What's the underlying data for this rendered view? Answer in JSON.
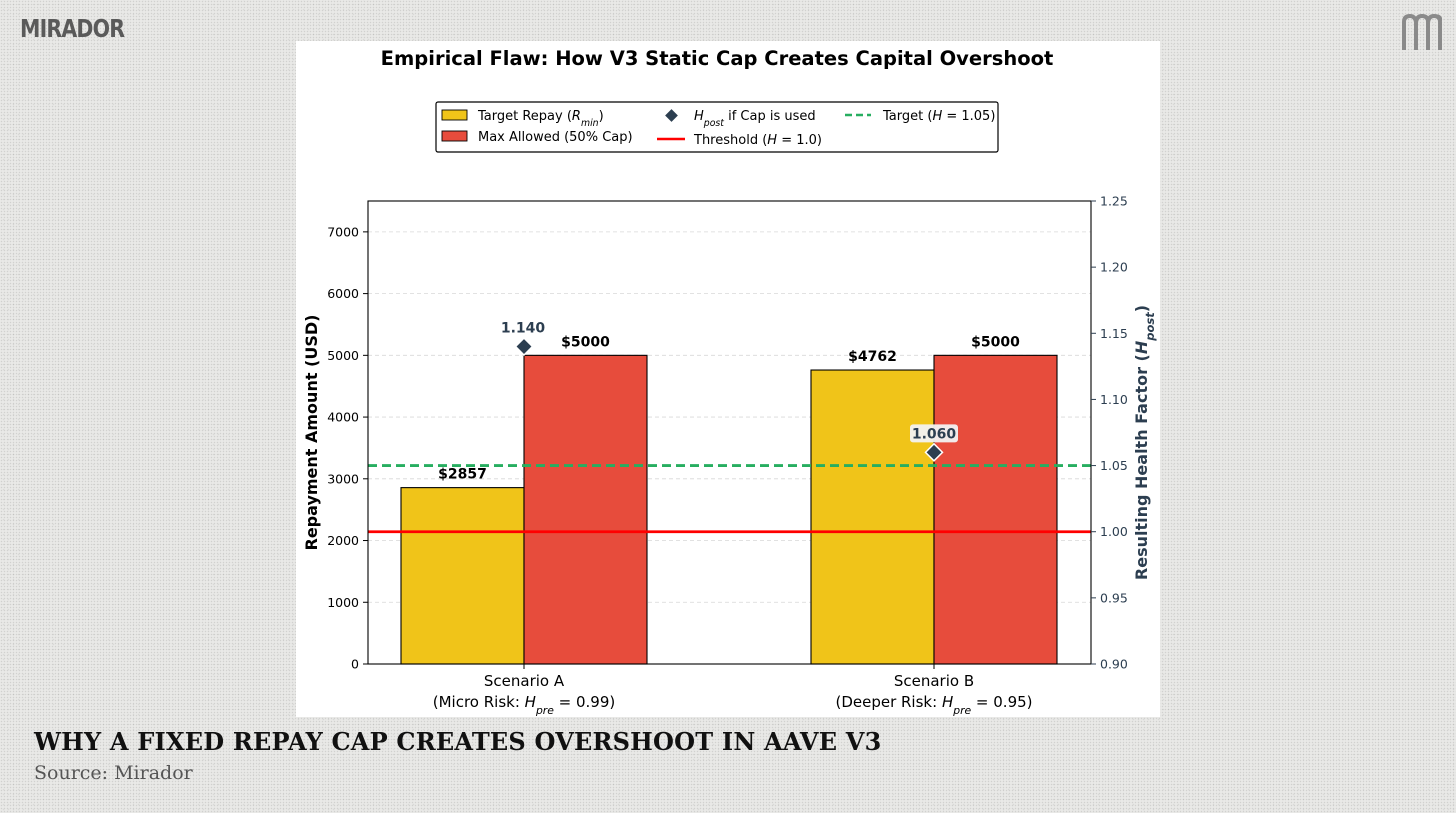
{
  "brand": {
    "wordmark": "MIRADOR",
    "mark_icon": "mirador-m-logo-icon"
  },
  "caption": {
    "title": "WHY A FIXED REPAY CAP CREATES OVERSHOOT IN AAVE V3",
    "source": "Source: Mirador"
  },
  "colors": {
    "target_bar": "#F0C419",
    "cap_bar": "#E74C3C",
    "marker": "#2C3E50",
    "threshold": "#FF0000",
    "target_line": "#27AE60",
    "right_axis": "#2C3E50"
  },
  "chart_data": {
    "type": "bar",
    "title": "Empirical Flaw: How V3 Static Cap Creates Capital Overshoot",
    "categories": [
      {
        "name": "Scenario A",
        "detail_prefix": "(Micro Risk: ",
        "h_label": "H",
        "h_sub": "pre",
        "detail_suffix": " = 0.99)"
      },
      {
        "name": "Scenario B",
        "detail_prefix": "(Deeper Risk: ",
        "h_label": "H",
        "h_sub": "pre",
        "detail_suffix": " = 0.95)"
      }
    ],
    "series": [
      {
        "name": "Target Repay (R_min)",
        "values": [
          2857,
          4762
        ],
        "labels": [
          "$2857",
          "$4762"
        ]
      },
      {
        "name": "Max Allowed (50% Cap)",
        "values": [
          5000,
          5000
        ],
        "labels": [
          "$5000",
          "$5000"
        ]
      }
    ],
    "hpost": {
      "name": "H_post if Cap is used",
      "values": [
        1.14,
        1.06
      ],
      "labels": [
        "1.140",
        "1.060"
      ]
    },
    "reference_lines": [
      {
        "name": "Threshold (H = 1.0)",
        "value": 1.0
      },
      {
        "name": "Target (H = 1.05)",
        "value": 1.05
      }
    ],
    "ylabel": "Repayment Amount (USD)",
    "ylim": [
      0,
      7500
    ],
    "yticks": [
      0,
      1000,
      2000,
      3000,
      4000,
      5000,
      6000,
      7000
    ],
    "y2label": "Resulting Health Factor (H_post)",
    "y2lim": [
      0.9,
      1.25
    ],
    "y2ticks": [
      "0.90",
      "0.95",
      "1.00",
      "1.05",
      "1.10",
      "1.15",
      "1.20",
      "1.25"
    ],
    "grid": "horizontal dashed",
    "legend": {
      "position": "top-center",
      "items": [
        {
          "kind": "patch",
          "series": 0,
          "text": "Target Repay (",
          "math": "R",
          "sub": "min",
          "tail": ")"
        },
        {
          "kind": "patch",
          "series": 1,
          "text": "Max Allowed (50% Cap)"
        },
        {
          "kind": "marker",
          "text": "",
          "math": "H",
          "sub": "post",
          "tail": " if Cap is used"
        },
        {
          "kind": "line-red",
          "text": "Threshold (",
          "math": "H",
          "sub": "",
          "tail": " = 1.0)"
        },
        {
          "kind": "line-green",
          "text": "Target (",
          "math": "H",
          "sub": "",
          "tail": " = 1.05)"
        }
      ]
    }
  }
}
